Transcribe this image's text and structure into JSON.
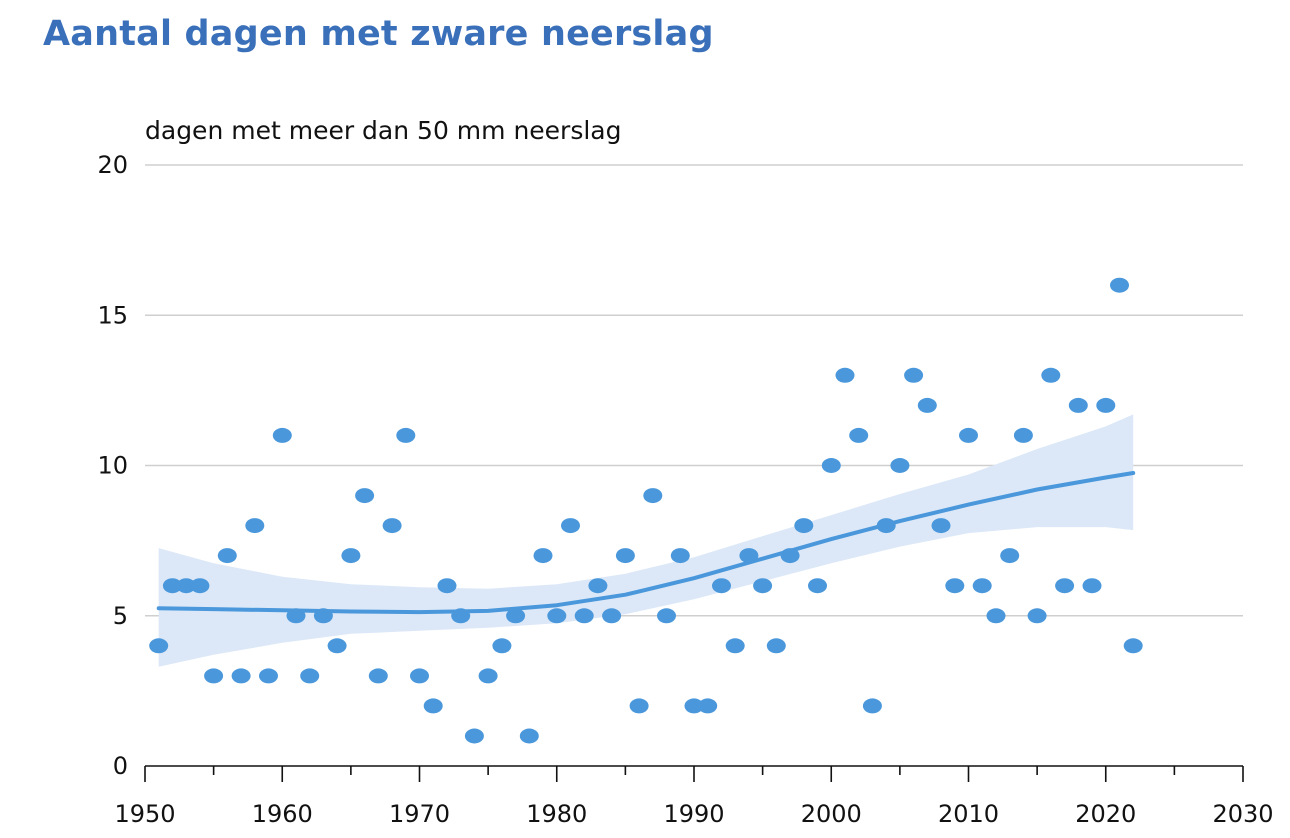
{
  "chart_data": {
    "type": "scatter",
    "title": "Aantal dagen met zware neerslag",
    "ylabel": "dagen met meer dan 50 mm neerslag",
    "xlabel": "",
    "xlim": [
      1950,
      2030
    ],
    "ylim": [
      0,
      20
    ],
    "x_ticks": [
      "1950",
      "1960",
      "1970",
      "1980",
      "1990",
      "2000",
      "2010",
      "2020",
      "2030"
    ],
    "y_ticks": [
      "0",
      "5",
      "10",
      "15",
      "20"
    ],
    "grid": true,
    "colors": {
      "points": "#4a98db",
      "trend": "#4a98db",
      "band": "#dce8f8",
      "title": "#3a6fb9",
      "grid": "#cfcfcf"
    },
    "series": [
      {
        "name": "dagen met meer dan 50 mm neerslag",
        "x": [
          1951,
          1952,
          1953,
          1954,
          1955,
          1956,
          1957,
          1958,
          1959,
          1960,
          1961,
          1962,
          1963,
          1964,
          1965,
          1966,
          1967,
          1968,
          1969,
          1970,
          1971,
          1972,
          1973,
          1974,
          1975,
          1976,
          1977,
          1978,
          1979,
          1980,
          1981,
          1982,
          1983,
          1984,
          1985,
          1986,
          1987,
          1988,
          1989,
          1990,
          1991,
          1992,
          1993,
          1994,
          1995,
          1996,
          1997,
          1998,
          1999,
          2000,
          2001,
          2002,
          2003,
          2004,
          2005,
          2006,
          2007,
          2008,
          2009,
          2010,
          2011,
          2012,
          2013,
          2014,
          2015,
          2016,
          2017,
          2018,
          2019,
          2020,
          2021,
          2022
        ],
        "y": [
          4,
          6,
          6,
          6,
          3,
          7,
          3,
          8,
          3,
          11,
          5,
          3,
          5,
          4,
          7,
          9,
          3,
          8,
          11,
          3,
          2,
          6,
          5,
          1,
          3,
          4,
          5,
          1,
          7,
          5,
          8,
          5,
          6,
          5,
          7,
          2,
          9,
          5,
          7,
          2,
          2,
          6,
          4,
          7,
          6,
          4,
          7,
          8,
          6,
          10,
          13,
          11,
          2,
          8,
          10,
          13,
          12,
          8,
          6,
          11,
          6,
          5,
          7,
          11,
          5,
          13,
          6,
          12,
          6,
          12,
          16,
          4
        ]
      }
    ],
    "trend": {
      "name": "trend",
      "x": [
        1951,
        1955,
        1960,
        1965,
        1970,
        1975,
        1980,
        1985,
        1990,
        1995,
        2000,
        2005,
        2010,
        2015,
        2020,
        2022
      ],
      "y": [
        5.25,
        5.22,
        5.18,
        5.14,
        5.12,
        5.16,
        5.35,
        5.7,
        6.25,
        6.9,
        7.55,
        8.15,
        8.7,
        9.2,
        9.6,
        9.75
      ],
      "lower": [
        3.3,
        3.7,
        4.1,
        4.4,
        4.5,
        4.6,
        4.75,
        5.05,
        5.55,
        6.15,
        6.75,
        7.3,
        7.75,
        7.95,
        7.95,
        7.85
      ],
      "upper": [
        7.25,
        6.75,
        6.3,
        6.05,
        5.95,
        5.9,
        6.05,
        6.4,
        6.95,
        7.65,
        8.35,
        9.05,
        9.7,
        10.55,
        11.3,
        11.7
      ]
    }
  }
}
